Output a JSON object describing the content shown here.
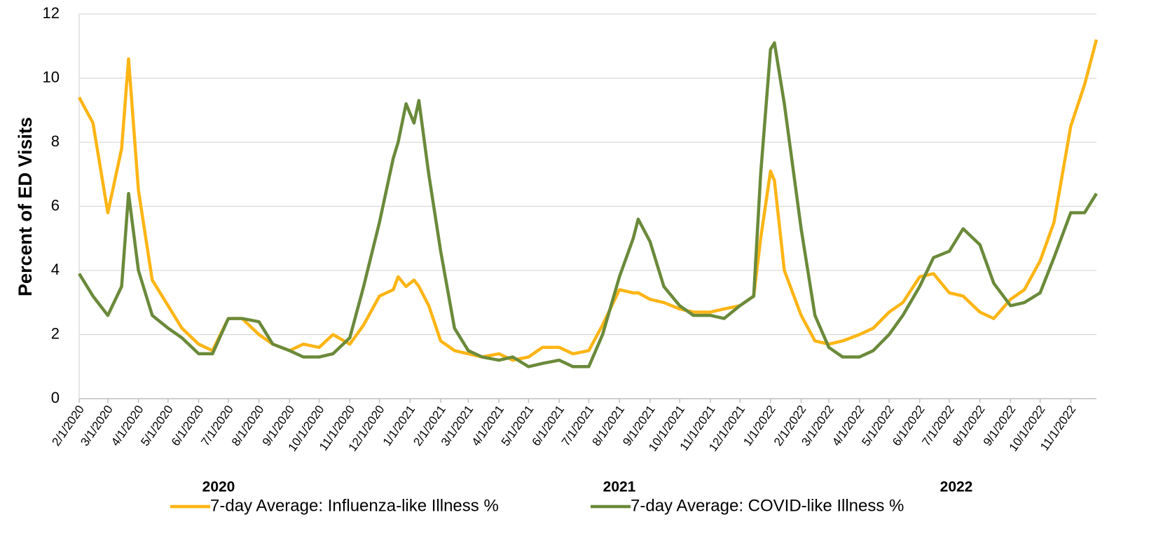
{
  "chart_data": {
    "type": "line",
    "y_label": "Percent of ED Visits",
    "annotations": [
      "2020",
      "2021",
      "2022"
    ],
    "x": [
      "2/1/2020",
      "2/15/2020",
      "3/1/2020",
      "3/15/2020",
      "3/22/2020",
      "4/1/2020",
      "4/15/2020",
      "5/1/2020",
      "5/15/2020",
      "6/1/2020",
      "6/15/2020",
      "7/1/2020",
      "7/15/2020",
      "8/1/2020",
      "8/15/2020",
      "9/1/2020",
      "9/15/2020",
      "10/1/2020",
      "10/15/2020",
      "11/1/2020",
      "11/15/2020",
      "12/1/2020",
      "12/15/2020",
      "12/20/2020",
      "12/28/2020",
      "1/5/2021",
      "1/10/2021",
      "1/20/2021",
      "2/1/2021",
      "2/15/2021",
      "3/1/2021",
      "3/15/2021",
      "4/1/2021",
      "4/15/2021",
      "5/1/2021",
      "5/15/2021",
      "6/1/2021",
      "6/15/2021",
      "7/1/2021",
      "7/15/2021",
      "8/1/2021",
      "8/15/2021",
      "8/20/2021",
      "9/1/2021",
      "9/15/2021",
      "10/1/2021",
      "10/15/2021",
      "11/1/2021",
      "11/15/2021",
      "12/1/2021",
      "12/15/2021",
      "12/22/2021",
      "1/1/2022",
      "1/5/2022",
      "1/15/2022",
      "2/1/2022",
      "2/15/2022",
      "3/1/2022",
      "3/15/2022",
      "4/1/2022",
      "4/15/2022",
      "5/1/2022",
      "5/15/2022",
      "6/1/2022",
      "6/15/2022",
      "7/1/2022",
      "7/15/2022",
      "8/1/2022",
      "8/15/2022",
      "9/1/2022",
      "9/15/2022",
      "10/1/2022",
      "10/15/2022",
      "11/1/2022",
      "11/15/2022",
      "11/27/2022"
    ],
    "series": [
      {
        "name": "7-day Average: Influenza-like Illness %",
        "color": "#fdb515",
        "values": [
          9.4,
          8.6,
          5.8,
          7.8,
          10.6,
          6.5,
          3.7,
          2.9,
          2.2,
          1.7,
          1.5,
          2.5,
          2.5,
          2.0,
          1.7,
          1.5,
          1.7,
          1.6,
          2.0,
          1.7,
          2.3,
          3.2,
          3.4,
          3.8,
          3.5,
          3.7,
          3.5,
          2.9,
          1.8,
          1.5,
          1.4,
          1.3,
          1.4,
          1.2,
          1.3,
          1.6,
          1.6,
          1.4,
          1.5,
          2.3,
          3.4,
          3.3,
          3.3,
          3.1,
          3.0,
          2.8,
          2.7,
          2.7,
          2.8,
          2.9,
          3.2,
          5.0,
          7.1,
          6.8,
          4.0,
          2.6,
          1.8,
          1.7,
          1.8,
          2.0,
          2.2,
          2.7,
          3.0,
          3.8,
          3.9,
          3.3,
          3.2,
          2.7,
          2.5,
          3.1,
          3.4,
          4.3,
          5.5,
          8.5,
          9.8,
          11.2
        ]
      },
      {
        "name": "7-day Average: COVID-like Illness %",
        "color": "#6a8a3a",
        "values": [
          3.9,
          3.2,
          2.6,
          3.5,
          6.4,
          4.0,
          2.6,
          2.2,
          1.9,
          1.4,
          1.4,
          2.5,
          2.5,
          2.4,
          1.7,
          1.5,
          1.3,
          1.3,
          1.4,
          1.9,
          3.5,
          5.5,
          7.5,
          8.0,
          9.2,
          8.6,
          9.3,
          7.0,
          4.6,
          2.2,
          1.5,
          1.3,
          1.2,
          1.3,
          1.0,
          1.1,
          1.2,
          1.0,
          1.0,
          2.0,
          3.8,
          5.0,
          5.6,
          4.9,
          3.5,
          2.9,
          2.6,
          2.6,
          2.5,
          2.9,
          3.2,
          7.0,
          10.9,
          11.1,
          9.2,
          5.3,
          2.6,
          1.6,
          1.3,
          1.3,
          1.5,
          2.0,
          2.6,
          3.5,
          4.4,
          4.6,
          5.3,
          4.8,
          3.6,
          2.9,
          3.0,
          3.3,
          4.4,
          5.8,
          5.8,
          6.4
        ]
      }
    ],
    "xlim": [
      "2/1/2020",
      "11/27/2022"
    ],
    "xticks": [
      "2/1/2020",
      "3/1/2020",
      "4/1/2020",
      "5/1/2020",
      "6/1/2020",
      "7/1/2020",
      "8/1/2020",
      "9/1/2020",
      "10/1/2020",
      "11/1/2020",
      "12/1/2020",
      "1/1/2021",
      "2/1/2021",
      "3/1/2021",
      "4/1/2021",
      "5/1/2021",
      "6/1/2021",
      "7/1/2021",
      "8/1/2021",
      "9/1/2021",
      "10/1/2021",
      "11/1/2021",
      "12/1/2021",
      "1/1/2022",
      "2/1/2022",
      "3/1/2022",
      "4/1/2022",
      "5/1/2022",
      "6/1/2022",
      "7/1/2022",
      "8/1/2022",
      "9/1/2022",
      "10/1/2022",
      "11/1/2022"
    ],
    "ylim": [
      0,
      12
    ],
    "yticks": [
      0,
      2,
      4,
      6,
      8,
      10,
      12
    ],
    "grid": true,
    "legend": "bottom"
  }
}
